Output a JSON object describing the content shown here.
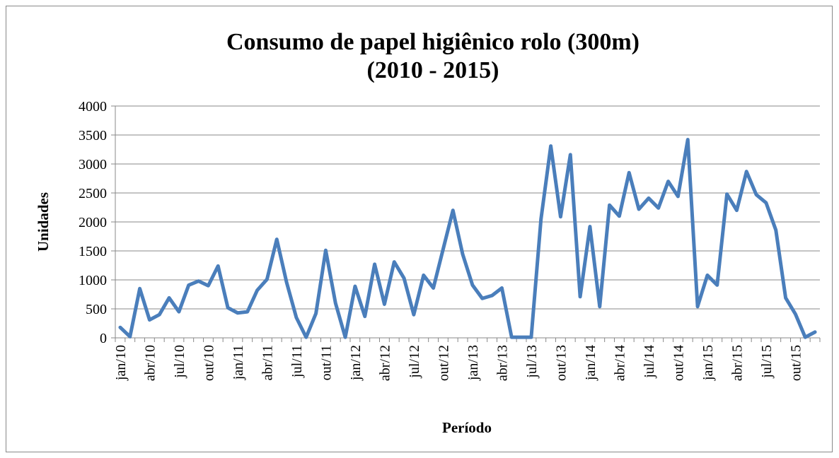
{
  "chart_data": {
    "type": "line",
    "title": "Consumo de papel higiênico rolo (300m)",
    "subtitle": "(2010 - 2015)",
    "x_label": "Período",
    "y_label": "Unidades",
    "color": "#4a7ebb",
    "grid": true,
    "ylim": [
      0,
      4000
    ],
    "yticks": [
      0,
      500,
      1000,
      1500,
      2000,
      2500,
      3000,
      3500,
      4000
    ],
    "categories": [
      "jan/10",
      null,
      null,
      "abr/10",
      null,
      null,
      "jul/10",
      null,
      null,
      "out/10",
      null,
      null,
      "jan/11",
      null,
      null,
      "abr/11",
      null,
      null,
      "jul/11",
      null,
      null,
      "out/11",
      null,
      null,
      "jan/12",
      null,
      null,
      "abr/12",
      null,
      null,
      "jul/12",
      null,
      null,
      "out/12",
      null,
      null,
      "jan/13",
      null,
      null,
      "abr/13",
      null,
      null,
      "jul/13",
      null,
      null,
      "out/13",
      null,
      null,
      "jan/14",
      null,
      null,
      "abr/14",
      null,
      null,
      "jul/14",
      null,
      null,
      "out/14",
      null,
      null,
      "jan/15",
      null,
      null,
      "abr/15",
      null,
      null,
      "jul/15",
      null,
      null,
      "out/15",
      null,
      null
    ],
    "values": [
      180,
      20,
      850,
      310,
      400,
      690,
      450,
      910,
      980,
      900,
      1240,
      520,
      430,
      450,
      820,
      1010,
      1700,
      960,
      350,
      10,
      420,
      1510,
      600,
      10,
      890,
      370,
      1270,
      580,
      1310,
      1030,
      400,
      1080,
      860,
      1530,
      2200,
      1440,
      910,
      680,
      730,
      860,
      10,
      10,
      10,
      2050,
      3310,
      2090,
      3160,
      710,
      1920,
      540,
      2290,
      2100,
      2850,
      2220,
      2410,
      2240,
      2700,
      2440,
      3420,
      540,
      1080,
      910,
      2480,
      2200,
      2870,
      2470,
      2330,
      1860,
      690,
      410,
      10,
      100
    ]
  }
}
